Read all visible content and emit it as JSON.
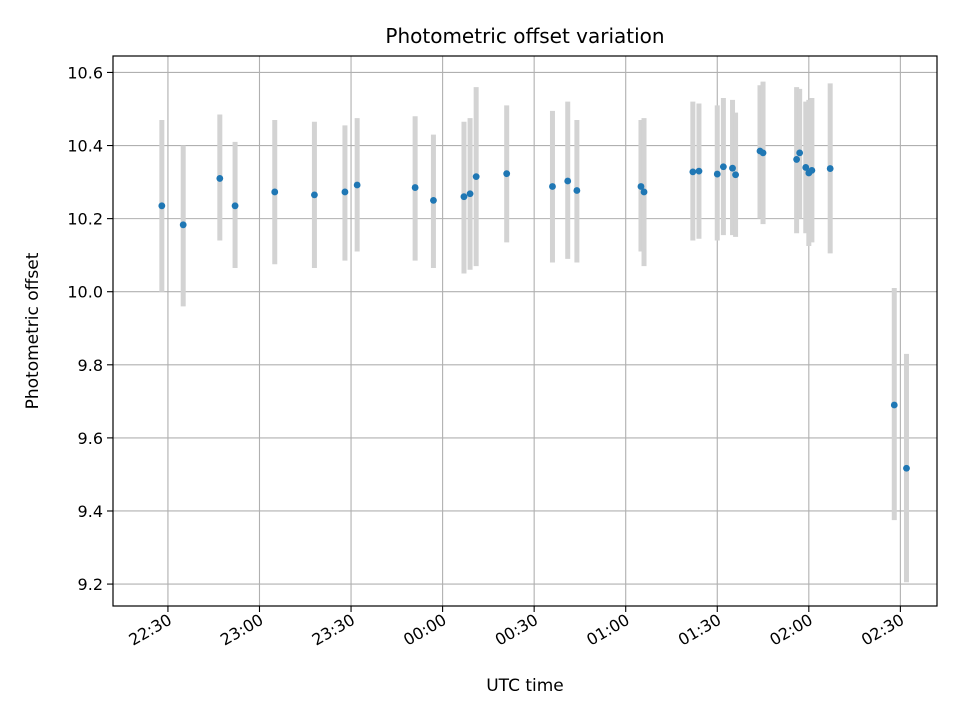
{
  "chart_data": {
    "type": "scatter",
    "title": "Photometric offset variation",
    "xlabel": "UTC time",
    "ylabel": "Photometric offset",
    "x_unit": "UTC (HH:MM, night spanning midnight)",
    "xlim": [
      "22:12",
      "02:42"
    ],
    "ylim": [
      9.14,
      10.645
    ],
    "yticks": [
      9.2,
      9.4,
      9.6,
      9.8,
      10.0,
      10.2,
      10.4,
      10.6
    ],
    "xticks": [
      "22:30",
      "23:00",
      "23:30",
      "00:00",
      "00:30",
      "01:00",
      "01:30",
      "02:00",
      "02:30"
    ],
    "grid": true,
    "colors": {
      "points": "#1f77b4",
      "errorbars": "#d3d3d3",
      "grid": "#b0b0b0"
    },
    "points": [
      {
        "x": "22:28",
        "y": 10.235,
        "low": 10.0,
        "high": 10.47
      },
      {
        "x": "22:35",
        "y": 10.183,
        "low": 9.96,
        "high": 10.4
      },
      {
        "x": "22:47",
        "y": 10.31,
        "low": 10.14,
        "high": 10.485
      },
      {
        "x": "22:52",
        "y": 10.235,
        "low": 10.065,
        "high": 10.41
      },
      {
        "x": "23:05",
        "y": 10.273,
        "low": 10.075,
        "high": 10.47
      },
      {
        "x": "23:18",
        "y": 10.265,
        "low": 10.065,
        "high": 10.465
      },
      {
        "x": "23:28",
        "y": 10.273,
        "low": 10.085,
        "high": 10.455
      },
      {
        "x": "23:32",
        "y": 10.292,
        "low": 10.11,
        "high": 10.475
      },
      {
        "x": "23:51",
        "y": 10.285,
        "low": 10.085,
        "high": 10.48
      },
      {
        "x": "23:57",
        "y": 10.25,
        "low": 10.065,
        "high": 10.43
      },
      {
        "x": "00:07",
        "y": 10.26,
        "low": 10.05,
        "high": 10.465
      },
      {
        "x": "00:09",
        "y": 10.268,
        "low": 10.06,
        "high": 10.475
      },
      {
        "x": "00:11",
        "y": 10.315,
        "low": 10.07,
        "high": 10.56
      },
      {
        "x": "00:21",
        "y": 10.323,
        "low": 10.135,
        "high": 10.51
      },
      {
        "x": "00:36",
        "y": 10.288,
        "low": 10.08,
        "high": 10.495
      },
      {
        "x": "00:41",
        "y": 10.303,
        "low": 10.09,
        "high": 10.52
      },
      {
        "x": "00:44",
        "y": 10.277,
        "low": 10.08,
        "high": 10.47
      },
      {
        "x": "01:05",
        "y": 10.288,
        "low": 10.11,
        "high": 10.47
      },
      {
        "x": "01:06",
        "y": 10.273,
        "low": 10.07,
        "high": 10.475
      },
      {
        "x": "01:22",
        "y": 10.328,
        "low": 10.14,
        "high": 10.52
      },
      {
        "x": "01:24",
        "y": 10.33,
        "low": 10.145,
        "high": 10.515
      },
      {
        "x": "01:30",
        "y": 10.322,
        "low": 10.14,
        "high": 10.51
      },
      {
        "x": "01:32",
        "y": 10.342,
        "low": 10.155,
        "high": 10.53
      },
      {
        "x": "01:35",
        "y": 10.338,
        "low": 10.155,
        "high": 10.525
      },
      {
        "x": "01:36",
        "y": 10.32,
        "low": 10.15,
        "high": 10.49
      },
      {
        "x": "01:44",
        "y": 10.385,
        "low": 10.2,
        "high": 10.565
      },
      {
        "x": "01:45",
        "y": 10.38,
        "low": 10.185,
        "high": 10.575
      },
      {
        "x": "01:56",
        "y": 10.362,
        "low": 10.16,
        "high": 10.56
      },
      {
        "x": "01:57",
        "y": 10.38,
        "low": 10.2,
        "high": 10.555
      },
      {
        "x": "01:59",
        "y": 10.34,
        "low": 10.16,
        "high": 10.52
      },
      {
        "x": "02:00",
        "y": 10.325,
        "low": 10.125,
        "high": 10.525
      },
      {
        "x": "02:01",
        "y": 10.332,
        "low": 10.135,
        "high": 10.53
      },
      {
        "x": "02:07",
        "y": 10.337,
        "low": 10.105,
        "high": 10.57
      },
      {
        "x": "02:28",
        "y": 9.69,
        "low": 9.375,
        "high": 10.01
      },
      {
        "x": "02:32",
        "y": 9.517,
        "low": 9.205,
        "high": 9.83
      }
    ]
  }
}
